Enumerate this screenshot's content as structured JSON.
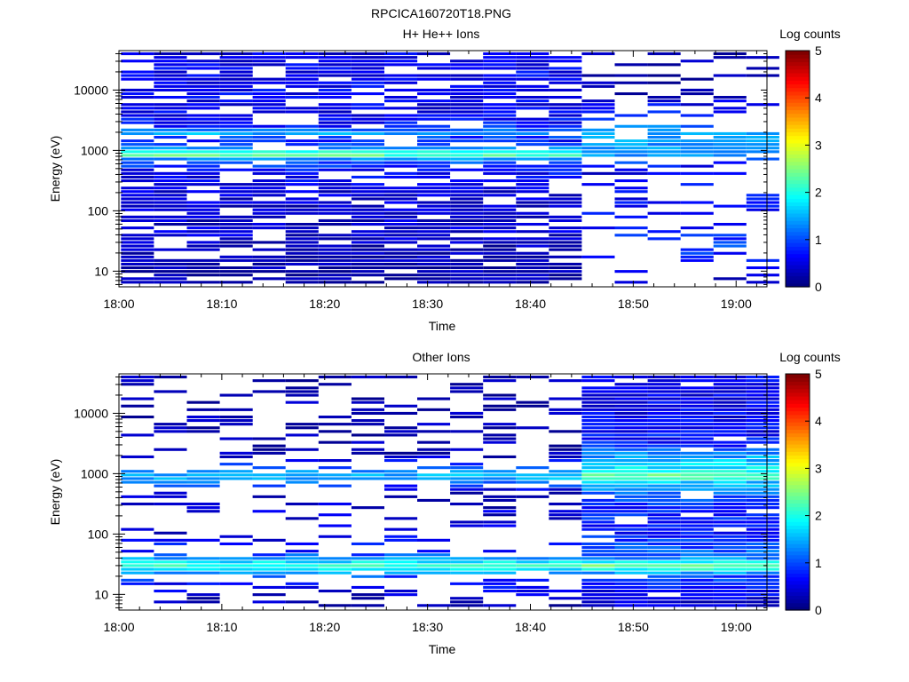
{
  "figure_title": "RPCICA160720T18.PNG",
  "chart_data": [
    {
      "type": "heatmap",
      "title": "H+ He++ Ions",
      "xlabel": "Time",
      "ylabel": "Energy (eV)",
      "x_ticks": [
        "18:00",
        "18:10",
        "18:20",
        "18:30",
        "18:40",
        "18:50",
        "19:00"
      ],
      "x_range_minutes": [
        0,
        63
      ],
      "y_scale": "log",
      "y_ticks": [
        "10",
        "100",
        "1000",
        "10000"
      ],
      "y_range_ev": [
        5.5,
        45000
      ],
      "colorbar": {
        "label": "Log counts",
        "ticks": [
          "0",
          "1",
          "2",
          "3",
          "4",
          "5"
        ],
        "range": [
          0,
          5
        ],
        "colormap": "jet"
      },
      "time_bins_minutes": [
        0.2,
        3.4,
        6.6,
        9.8,
        13.0,
        16.2,
        19.4,
        22.6,
        25.8,
        29.0,
        32.2,
        35.4,
        38.6,
        41.8,
        45.0,
        48.2,
        51.4,
        54.6,
        57.8,
        61.0
      ],
      "profile": [
        {
          "energy_ev": 40000,
          "log_counts": 0.5
        },
        {
          "energy_ev": 20000,
          "log_counts": 0.55
        },
        {
          "energy_ev": 10000,
          "log_counts": 0.6
        },
        {
          "energy_ev": 5000,
          "log_counts": 0.5
        },
        {
          "energy_ev": 2500,
          "log_counts": 0.7
        },
        {
          "energy_ev": 1900,
          "log_counts": 1.5
        },
        {
          "energy_ev": 1500,
          "log_counts": 0.6
        },
        {
          "energy_ev": 1000,
          "log_counts": 1.4
        },
        {
          "energy_ev": 870,
          "log_counts": 2.7
        },
        {
          "energy_ev": 800,
          "log_counts": 2.1
        },
        {
          "energy_ev": 700,
          "log_counts": 1.2
        },
        {
          "energy_ev": 500,
          "log_counts": 0.7
        },
        {
          "energy_ev": 300,
          "log_counts": 0.5
        },
        {
          "energy_ev": 150,
          "log_counts": 0.4
        },
        {
          "energy_ev": 70,
          "log_counts": 0.35
        },
        {
          "energy_ev": 40,
          "log_counts": 0.4
        },
        {
          "energy_ev": 25,
          "log_counts": 0.3
        },
        {
          "energy_ev": 15,
          "log_counts": 0.2
        },
        {
          "energy_ev": 8,
          "log_counts": 0.15
        }
      ],
      "late_profile": [
        {
          "energy_ev": 40000,
          "log_counts": 0.2
        },
        {
          "energy_ev": 10000,
          "log_counts": 0.2
        },
        {
          "energy_ev": 1900,
          "log_counts": 1.3
        },
        {
          "energy_ev": 870,
          "log_counts": 1.4
        },
        {
          "energy_ev": 500,
          "log_counts": 0.5
        },
        {
          "energy_ev": 150,
          "log_counts": 0.6
        },
        {
          "energy_ev": 40,
          "log_counts": 0.7
        },
        {
          "energy_ev": 25,
          "log_counts": 0.9
        },
        {
          "energy_ev": 10,
          "log_counts": 0.4
        }
      ],
      "late_from_minutes": 45,
      "fill_early": 0.78,
      "fill_late": 0.3
    },
    {
      "type": "heatmap",
      "title": "Other Ions",
      "xlabel": "Time",
      "ylabel": "Energy (eV)",
      "x_ticks": [
        "18:00",
        "18:10",
        "18:20",
        "18:30",
        "18:40",
        "18:50",
        "19:00"
      ],
      "x_range_minutes": [
        0,
        63
      ],
      "y_scale": "log",
      "y_ticks": [
        "10",
        "100",
        "1000",
        "10000"
      ],
      "y_range_ev": [
        5.5,
        45000
      ],
      "colorbar": {
        "label": "Log counts",
        "ticks": [
          "0",
          "1",
          "2",
          "3",
          "4",
          "5"
        ],
        "range": [
          0,
          5
        ],
        "colormap": "jet"
      },
      "time_bins_minutes": [
        0.2,
        3.4,
        6.6,
        9.8,
        13.0,
        16.2,
        19.4,
        22.6,
        25.8,
        29.0,
        32.2,
        35.4,
        38.6,
        41.8,
        45.0,
        48.2,
        51.4,
        54.6,
        57.8,
        61.0
      ],
      "profile": [
        {
          "energy_ev": 40000,
          "log_counts": 0.2
        },
        {
          "energy_ev": 10000,
          "log_counts": 0.2
        },
        {
          "energy_ev": 2000,
          "log_counts": 0.2
        },
        {
          "energy_ev": 870,
          "log_counts": 1.6
        },
        {
          "energy_ev": 500,
          "log_counts": 0.3
        },
        {
          "energy_ev": 200,
          "log_counts": 0.4
        },
        {
          "energy_ev": 100,
          "log_counts": 0.45
        },
        {
          "energy_ev": 50,
          "log_counts": 0.7
        },
        {
          "energy_ev": 40,
          "log_counts": 1.3
        },
        {
          "energy_ev": 30,
          "log_counts": 2.1
        },
        {
          "energy_ev": 25,
          "log_counts": 1.8
        },
        {
          "energy_ev": 20,
          "log_counts": 1.0
        },
        {
          "energy_ev": 15,
          "log_counts": 0.7
        },
        {
          "energy_ev": 10,
          "log_counts": 0.4
        },
        {
          "energy_ev": 7,
          "log_counts": 0.2
        }
      ],
      "late_profile": [
        {
          "energy_ev": 40000,
          "log_counts": 0.5
        },
        {
          "energy_ev": 10000,
          "log_counts": 0.55
        },
        {
          "energy_ev": 3000,
          "log_counts": 0.7
        },
        {
          "energy_ev": 1900,
          "log_counts": 1.4
        },
        {
          "energy_ev": 1000,
          "log_counts": 2.0
        },
        {
          "energy_ev": 870,
          "log_counts": 2.6
        },
        {
          "energy_ev": 700,
          "log_counts": 1.5
        },
        {
          "energy_ev": 300,
          "log_counts": 0.8
        },
        {
          "energy_ev": 100,
          "log_counts": 0.7
        },
        {
          "energy_ev": 40,
          "log_counts": 1.2
        },
        {
          "energy_ev": 30,
          "log_counts": 2.4
        },
        {
          "energy_ev": 25,
          "log_counts": 1.9
        },
        {
          "energy_ev": 20,
          "log_counts": 1.0
        },
        {
          "energy_ev": 12,
          "log_counts": 0.6
        },
        {
          "energy_ev": 7,
          "log_counts": 0.4
        }
      ],
      "late_from_minutes": 45,
      "fill_early": 0.3,
      "fill_late": 0.92
    }
  ]
}
